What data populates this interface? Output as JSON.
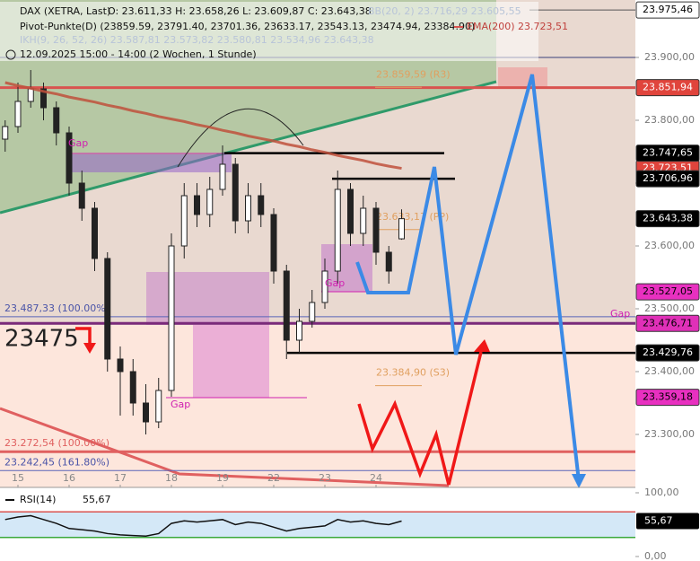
{
  "chart_data": {
    "type": "candlestick",
    "header": {
      "instrument": "DAX (XETRA, Last)",
      "ohlc": "O: 23.611,33  H: 23.658,26  L: 23.609,87  C: 23.643,38",
      "bb": "BB(20, 2)  23.716,29  23.605,55",
      "pivot": "Pivot-Punkte(D)  (23859.59,  23791.40,  23701.36,  23633.17,  23543.13,  23474.94,  23384.90)",
      "ema": "EMA(200)  23.723,51",
      "ikh": "IKH(9, 26, 52, 26)  23.587,81  23.573,82  23.580,81  23.534,96  23.643,38",
      "period": "12.09.2025 15:00 - 14:00  (2 Wochen, 1 Stunde)"
    },
    "x": [
      -1,
      0,
      1,
      2,
      3,
      4,
      5,
      6,
      7,
      8,
      9,
      10,
      11,
      12,
      13,
      14,
      15,
      16,
      17,
      18,
      19,
      20,
      21,
      22,
      23,
      24,
      25,
      26,
      27,
      28,
      29,
      30
    ],
    "open": [
      23770,
      23790,
      23830,
      23850,
      23820,
      23780,
      23700,
      23660,
      23580,
      23420,
      23400,
      23350,
      23320,
      23370,
      23600,
      23680,
      23650,
      23690,
      23730,
      23640,
      23680,
      23650,
      23560,
      23450,
      23480,
      23510,
      23560,
      23690,
      23620,
      23660,
      23590,
      23611.33
    ],
    "high": [
      23800,
      23860,
      23880,
      23860,
      23830,
      23790,
      23720,
      23670,
      23590,
      23440,
      23420,
      23380,
      23390,
      23620,
      23700,
      23700,
      23710,
      23760,
      23740,
      23700,
      23700,
      23660,
      23570,
      23500,
      23530,
      23580,
      23720,
      23700,
      23680,
      23670,
      23600,
      23658.26
    ],
    "low": [
      23750,
      23780,
      23820,
      23800,
      23760,
      23680,
      23640,
      23560,
      23400,
      23330,
      23330,
      23300,
      23310,
      23360,
      23580,
      23630,
      23630,
      23680,
      23620,
      23620,
      23630,
      23540,
      23420,
      23430,
      23470,
      23500,
      23540,
      23600,
      23600,
      23570,
      23540,
      23609.87
    ],
    "close": [
      23790,
      23830,
      23850,
      23820,
      23780,
      23700,
      23660,
      23580,
      23420,
      23400,
      23350,
      23320,
      23370,
      23600,
      23680,
      23650,
      23690,
      23730,
      23640,
      23680,
      23650,
      23560,
      23450,
      23480,
      23510,
      23560,
      23690,
      23620,
      23660,
      23590,
      23560,
      23643.38
    ],
    "ema": {
      "color": "#c0503c",
      "values": [
        23860,
        23855,
        23851,
        23846,
        23842,
        23837,
        23833,
        23829,
        23824,
        23820,
        23815,
        23811,
        23806,
        23802,
        23798,
        23793,
        23789,
        23784,
        23780,
        23775,
        23771,
        23767,
        23762,
        23758,
        23753,
        23749,
        23744,
        23740,
        23736,
        23731,
        23727,
        23723.51
      ]
    },
    "xlim": [
      -1.4035,
      48.28
    ],
    "xticks": [
      {
        "value": 0,
        "label": "15"
      },
      {
        "value": 4,
        "label": "16"
      },
      {
        "value": 8,
        "label": "17"
      },
      {
        "value": 12,
        "label": "18"
      },
      {
        "value": 16,
        "label": "19"
      },
      {
        "value": 20,
        "label": "22"
      },
      {
        "value": 24,
        "label": "23"
      },
      {
        "value": 28,
        "label": "24"
      }
    ],
    "ylim": [
      23220,
      23991.43
    ],
    "yticks": [
      {
        "value": 23300,
        "label": "23.300,00"
      },
      {
        "value": 23400,
        "label": "23.400,00"
      },
      {
        "value": 23500,
        "label": "23.500,00"
      },
      {
        "value": 23600,
        "label": "23.600,00"
      },
      {
        "value": 23700,
        "label": "23.700,00"
      },
      {
        "value": 23800,
        "label": "23.800,00"
      },
      {
        "value": 23900,
        "label": "23.900,00"
      }
    ],
    "levels": [
      {
        "value": 23975.46,
        "color": "#555555"
      },
      {
        "value": 23900,
        "color": "#3a3f7a"
      },
      {
        "value": 23851.94,
        "color": "#d9534f"
      },
      {
        "value": 23747.65,
        "color": "#000000"
      },
      {
        "value": 23706.96,
        "color": "#000000"
      },
      {
        "value": 23487.33,
        "color": "#5a64b8"
      },
      {
        "value": 23476.71,
        "color": "#7a2a7a"
      },
      {
        "value": 23429.76,
        "color": "#000000"
      },
      {
        "value": 23272.54,
        "color": "#e06060"
      },
      {
        "value": 23242.45,
        "color": "#5a64b8"
      }
    ],
    "annotations": [
      {
        "value": 23859.59,
        "label": "23.859,59 (R3)",
        "color": "#e0a060"
      },
      {
        "value": 23633.17,
        "label": "23.633,17 (PP)",
        "color": "#e0a060"
      },
      {
        "value": 23384.9,
        "label": "23.384,90 (S3)",
        "color": "#e0a060"
      },
      {
        "value": 23487.33,
        "label": "23.487,33 (100.00%)",
        "color": "#4a54a8"
      },
      {
        "value": 23272.54,
        "label": "23.272,54 (100.00%)",
        "color": "#e06060"
      },
      {
        "value": 23242.45,
        "label": "23.242,45 (161.80%)",
        "color": "#4a54a8"
      }
    ],
    "big_label": "23475",
    "gap_label": "Gap",
    "price_tags": [
      {
        "value": 23975.46,
        "label": "23.975,46",
        "color": "#ffffff",
        "text_color": "#000000"
      },
      {
        "value": 23851.94,
        "label": "23.851,94",
        "color": "#e0443c",
        "text_color": "#ffffff"
      },
      {
        "value": 23723.51,
        "label": "23.723,51",
        "color": "#e0443c",
        "text_color": "#ffffff"
      },
      {
        "value": 23747.65,
        "label": "23.747,65",
        "color": "#000000",
        "text_color": "#ffffff"
      },
      {
        "value": 23706.96,
        "label": "23.706,96",
        "color": "#000000",
        "text_color": "#ffffff"
      },
      {
        "value": 23643.38,
        "label": "23.643,38",
        "color": "#000000",
        "text_color": "#ffffff"
      },
      {
        "value": 23527.05,
        "label": "23.527,05",
        "color": "#e830c0",
        "text_color": "#000000"
      },
      {
        "value": 23476.71,
        "label": "23.476,71",
        "color": "#e030b8",
        "text_color": "#000000"
      },
      {
        "value": 23429.76,
        "label": "23.429,76",
        "color": "#000000",
        "text_color": "#ffffff"
      },
      {
        "value": 23359.18,
        "label": "23.359,18",
        "color": "#e830c0",
        "text_color": "#000000"
      }
    ],
    "rsi": {
      "name": "RSI(14)",
      "last_label": "55,67",
      "last": 55.67,
      "color": "#111111",
      "values": [
        58,
        62,
        64,
        58,
        52,
        44,
        42,
        40,
        36,
        34,
        33,
        32,
        36,
        52,
        56,
        54,
        56,
        58,
        50,
        54,
        52,
        46,
        40,
        44,
        46,
        48,
        58,
        54,
        56,
        52,
        50,
        55.67
      ],
      "ylim": [
        0,
        100
      ],
      "yticks": [
        {
          "value": 100,
          "label": "100,00"
        },
        {
          "value": 0,
          "label": "0,00"
        }
      ],
      "levels": [
        {
          "value": 70,
          "color": "#d9534f"
        },
        {
          "value": 30,
          "color": "#3aa83a"
        }
      ]
    }
  }
}
